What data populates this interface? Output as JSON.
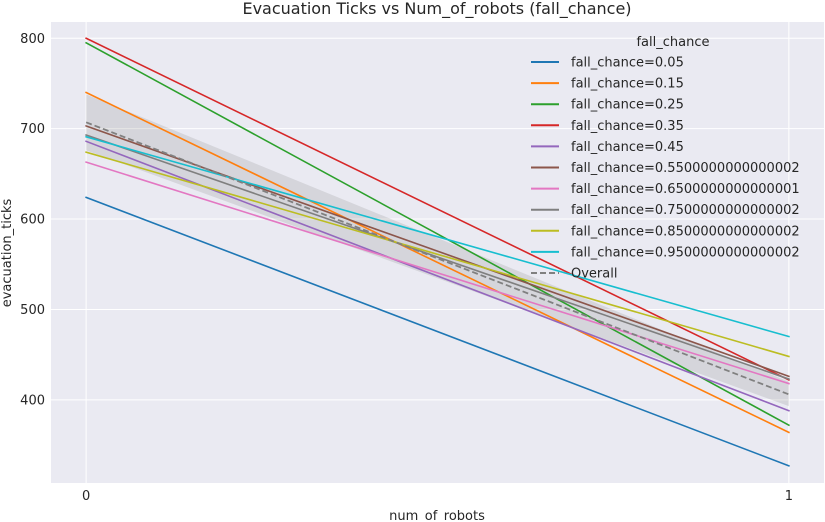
{
  "chart_data": {
    "type": "line",
    "title": "Evacuation Ticks vs Num_of_robots (fall_chance)",
    "xlabel": "num_of_robots",
    "ylabel": "evacuation_ticks",
    "x": [
      0,
      1
    ],
    "xticks": [
      "0",
      "1"
    ],
    "xlim": [
      -0.05,
      1.05
    ],
    "ylim": [
      308,
      818
    ],
    "yticks": [
      400,
      500,
      600,
      700,
      800
    ],
    "grid": true,
    "legend_title": "fall_chance",
    "legend_position": "top-right",
    "series": [
      {
        "name": "fall_chance=0.05",
        "color": "#1f77b4",
        "values": [
          624,
          327
        ]
      },
      {
        "name": "fall_chance=0.15",
        "color": "#ff7f0e",
        "values": [
          740,
          364
        ]
      },
      {
        "name": "fall_chance=0.25",
        "color": "#2ca02c",
        "values": [
          795,
          372
        ]
      },
      {
        "name": "fall_chance=0.35",
        "color": "#d62728",
        "values": [
          800,
          422
        ]
      },
      {
        "name": "fall_chance=0.45",
        "color": "#9467bd",
        "values": [
          686,
          388
        ]
      },
      {
        "name": "fall_chance=0.5500000000000002",
        "color": "#8c564b",
        "values": [
          703,
          426
        ]
      },
      {
        "name": "fall_chance=0.6500000000000001",
        "color": "#e377c2",
        "values": [
          663,
          418
        ]
      },
      {
        "name": "fall_chance=0.7500000000000002",
        "color": "#7f7f7f",
        "values": [
          693,
          423
        ]
      },
      {
        "name": "fall_chance=0.8500000000000002",
        "color": "#bcbd22",
        "values": [
          674,
          448
        ]
      },
      {
        "name": "fall_chance=0.9500000000000002",
        "color": "#17becf",
        "values": [
          691,
          470
        ]
      }
    ],
    "overall": {
      "name": "Overall",
      "color": "#808080",
      "values": [
        707,
        406
      ],
      "ci_low": [
        676,
        393
      ],
      "ci_high": [
        738,
        420
      ]
    }
  }
}
